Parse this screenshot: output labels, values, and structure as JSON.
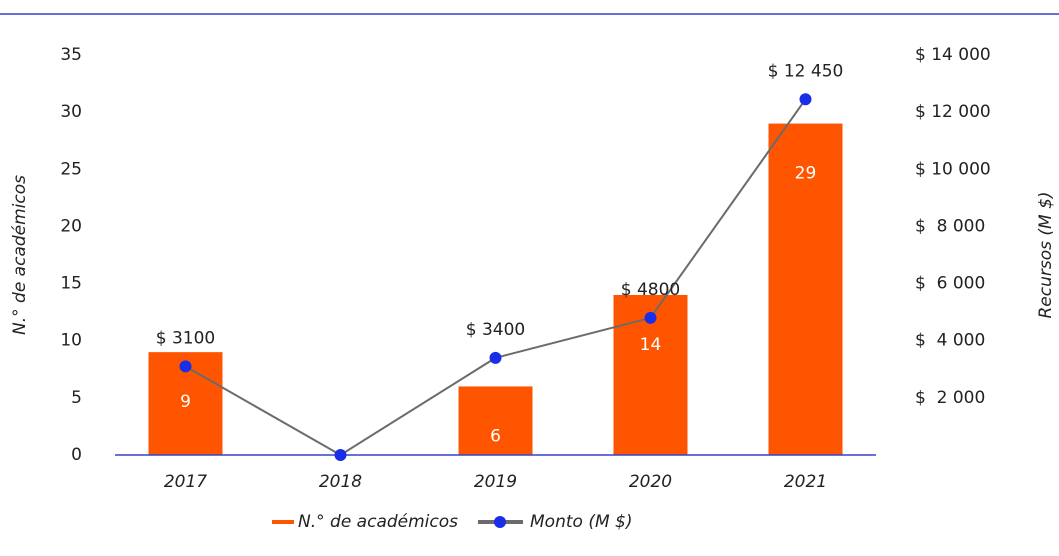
{
  "chart_data": {
    "type": "bar_line",
    "categories": [
      "2017",
      "2018",
      "2019",
      "2020",
      "2021"
    ],
    "series": [
      {
        "name": "N.° de académicos",
        "color": "#ff5500",
        "type": "bar",
        "values": [
          9,
          null,
          6,
          14,
          29
        ]
      },
      {
        "name": "Monto (M $)",
        "color": "#1a2ee8",
        "line_color": "#6b6b6b",
        "type": "line",
        "axis": "y2",
        "values": [
          3100,
          0,
          3400,
          4800,
          12450
        ],
        "value_labels": [
          "$ 3100",
          null,
          "$ 3400",
          "$ 4800",
          "$ 12 450"
        ]
      }
    ],
    "ylabel": "N.° de académicos",
    "y2label": "Recursos (M $)",
    "ylim": [
      0,
      35
    ],
    "yticks": [
      0,
      5,
      10,
      15,
      20,
      25,
      30,
      35
    ],
    "y2lim": [
      0,
      14000
    ],
    "y2ticks": [
      {
        "value": 2000,
        "label": "$  2 000"
      },
      {
        "value": 4000,
        "label": "$  4 000"
      },
      {
        "value": 6000,
        "label": "$  6 000"
      },
      {
        "value": 8000,
        "label": "$  8 000"
      },
      {
        "value": 10000,
        "label": "$ 10 000"
      },
      {
        "value": 12000,
        "label": "$ 12 000"
      },
      {
        "value": 14000,
        "label": "$ 14 000"
      }
    ],
    "legend": "bottom"
  }
}
